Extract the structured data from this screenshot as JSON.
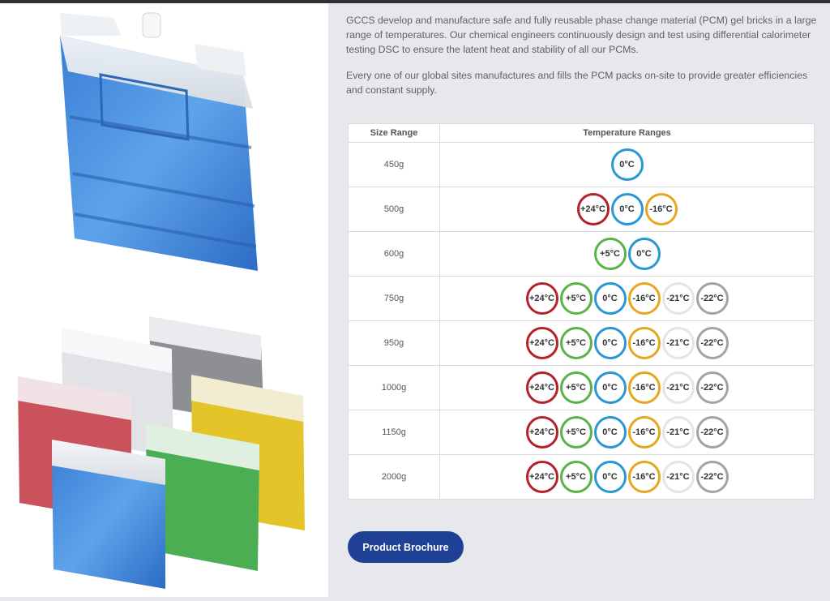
{
  "intro": {
    "paragraph1": "GCCS develop and manufacture safe and fully reusable phase change material (PCM) gel bricks in a large range of temperatures. Our chemical engineers continuously design and test using differential calorimeter testing DSC to ensure the latent heat and stability of all our PCMs.",
    "paragraph2": "Every one of our global sites manufactures and fills the PCM packs on-site to provide greater efficiencies and constant supply."
  },
  "table": {
    "headers": {
      "size": "Size Range",
      "temps": "Temperature Ranges"
    },
    "rows": [
      {
        "size": "450g",
        "temps": [
          "0°C"
        ]
      },
      {
        "size": "500g",
        "temps": [
          "+24°C",
          "0°C",
          "-16°C"
        ]
      },
      {
        "size": "600g",
        "temps": [
          "+5°C",
          "0°C"
        ]
      },
      {
        "size": "750g",
        "temps": [
          "+24°C",
          "+5°C",
          "0°C",
          "-16°C",
          "-21°C",
          "-22°C"
        ]
      },
      {
        "size": "950g",
        "temps": [
          "+24°C",
          "+5°C",
          "0°C",
          "-16°C",
          "-21°C",
          "-22°C"
        ]
      },
      {
        "size": "1000g",
        "temps": [
          "+24°C",
          "+5°C",
          "0°C",
          "-16°C",
          "-21°C",
          "-22°C"
        ]
      },
      {
        "size": "1150g",
        "temps": [
          "+24°C",
          "+5°C",
          "0°C",
          "-16°C",
          "-21°C",
          "-22°C"
        ]
      },
      {
        "size": "2000g",
        "temps": [
          "+24°C",
          "+5°C",
          "0°C",
          "-16°C",
          "-21°C",
          "-22°C"
        ]
      }
    ]
  },
  "temp_colors": {
    "+24°C": "#b3222b",
    "+5°C": "#5ab346",
    "0°C": "#2b97d1",
    "-16°C": "#e6a71e",
    "-21°C": "#e5e5e5",
    "-22°C": "#a3a3a3"
  },
  "button": {
    "label": "Product Brochure"
  },
  "colors": {
    "button_bg": "#1e4196",
    "panel_bg": "#e6e8ec"
  }
}
